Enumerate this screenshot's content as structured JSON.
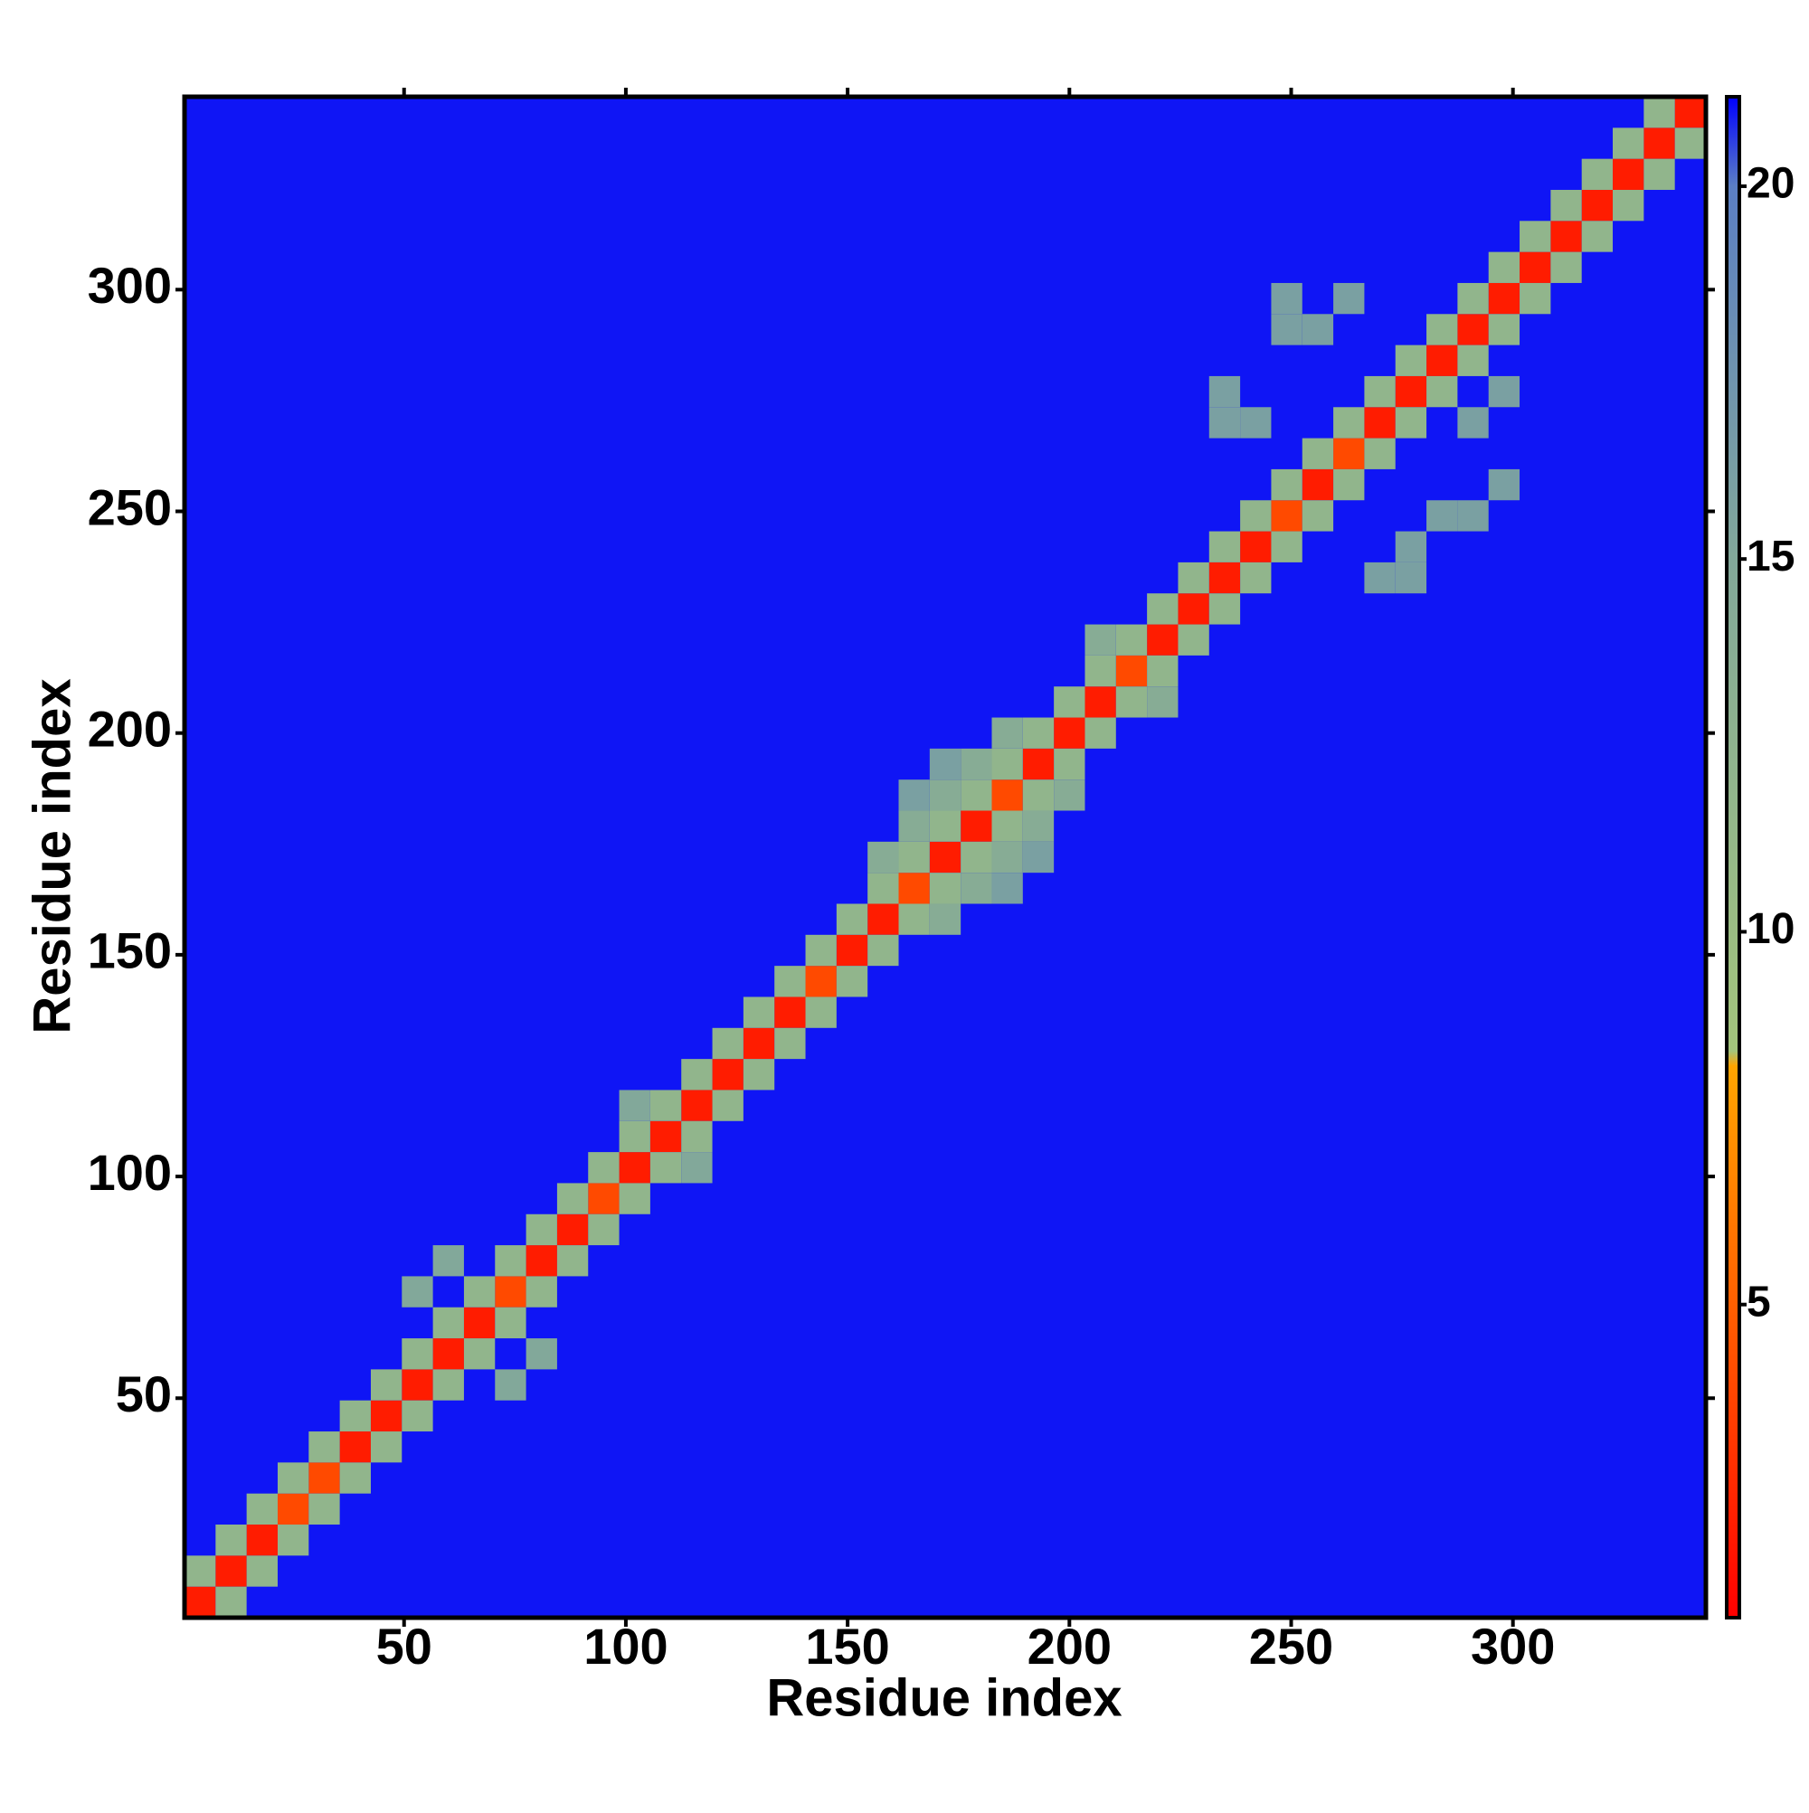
{
  "chart_data": {
    "type": "heatmap",
    "x_label": "Residue index",
    "y_label": "Residue index",
    "xlim": [
      0.5,
      343.5
    ],
    "ylim": [
      0.5,
      343.5
    ],
    "xticks": [
      50,
      100,
      150,
      200,
      250,
      300
    ],
    "yticks": [
      50,
      100,
      150,
      200,
      250,
      300
    ],
    "fill_value": 21,
    "x": [
      4,
      11,
      18,
      25,
      32,
      39,
      46,
      53,
      60,
      67,
      74,
      81,
      88,
      95,
      102,
      109,
      116,
      123,
      130,
      137,
      144,
      151,
      158,
      165,
      172,
      179,
      186,
      193,
      200,
      207,
      214,
      221,
      228,
      235,
      242,
      249,
      256,
      263,
      270,
      277,
      284,
      291,
      298,
      305,
      312,
      319,
      326,
      333,
      340,
      4,
      11,
      18,
      25,
      32,
      39,
      46,
      53,
      60,
      67,
      74,
      81,
      88,
      95,
      102,
      109,
      116,
      123,
      130,
      137,
      144,
      151,
      158,
      165,
      172,
      179,
      186,
      193,
      200,
      207,
      214,
      221,
      228,
      235,
      242,
      249,
      256,
      263,
      270,
      277,
      284,
      291,
      298,
      305,
      312,
      319,
      326,
      333,
      11,
      18,
      25,
      32,
      39,
      46,
      53,
      60,
      67,
      74,
      81,
      88,
      95,
      102,
      109,
      116,
      123,
      130,
      137,
      144,
      151,
      158,
      165,
      172,
      179,
      186,
      193,
      200,
      207,
      214,
      221,
      228,
      235,
      242,
      249,
      256,
      263,
      270,
      277,
      284,
      291,
      298,
      305,
      312,
      319,
      326,
      333,
      340,
      53,
      60,
      74,
      81,
      158,
      172,
      165,
      179,
      172,
      186,
      179,
      193,
      186,
      200,
      165,
      186,
      172,
      193,
      235,
      242,
      235,
      249,
      256,
      249,
      263,
      270,
      277,
      277,
      284,
      291,
      298,
      291,
      298,
      207,
      221,
      102,
      116
    ],
    "y": [
      4,
      11,
      18,
      25,
      32,
      39,
      46,
      53,
      60,
      67,
      74,
      81,
      88,
      95,
      102,
      109,
      116,
      123,
      130,
      137,
      144,
      151,
      158,
      165,
      172,
      179,
      186,
      193,
      200,
      207,
      214,
      221,
      228,
      235,
      242,
      249,
      256,
      263,
      270,
      277,
      284,
      291,
      298,
      305,
      312,
      319,
      326,
      333,
      340,
      11,
      18,
      25,
      32,
      39,
      46,
      53,
      60,
      67,
      74,
      81,
      88,
      95,
      102,
      109,
      116,
      123,
      130,
      137,
      144,
      151,
      158,
      165,
      172,
      179,
      186,
      193,
      200,
      207,
      214,
      221,
      228,
      235,
      242,
      249,
      256,
      263,
      270,
      277,
      284,
      291,
      298,
      305,
      312,
      319,
      326,
      333,
      340,
      4,
      11,
      18,
      25,
      32,
      39,
      46,
      53,
      60,
      67,
      74,
      81,
      88,
      95,
      102,
      109,
      116,
      123,
      130,
      137,
      144,
      151,
      158,
      165,
      172,
      179,
      186,
      193,
      200,
      207,
      214,
      221,
      228,
      235,
      242,
      249,
      256,
      263,
      270,
      277,
      284,
      291,
      298,
      305,
      312,
      319,
      326,
      333,
      74,
      81,
      53,
      60,
      172,
      158,
      179,
      165,
      186,
      172,
      193,
      179,
      200,
      186,
      186,
      165,
      193,
      172,
      270,
      270,
      277,
      291,
      291,
      298,
      298,
      235,
      235,
      242,
      249,
      249,
      256,
      270,
      277,
      221,
      207,
      116,
      102
    ],
    "values": [
      2,
      2,
      2,
      4,
      4,
      2,
      2,
      2,
      2,
      2,
      4,
      2,
      2,
      4,
      2,
      2,
      2,
      2,
      2,
      2,
      4,
      2,
      2,
      4,
      2,
      2,
      4,
      2,
      2,
      2,
      4,
      2,
      2,
      2,
      2,
      4,
      2,
      4,
      2,
      2,
      2,
      2,
      2,
      2,
      2,
      2,
      2,
      2,
      2,
      12,
      12,
      12,
      12,
      12,
      12,
      12,
      12,
      12,
      12,
      12,
      12,
      12,
      12,
      12,
      12,
      12,
      12,
      12,
      12,
      12,
      12,
      12,
      12,
      12,
      12,
      12,
      12,
      12,
      12,
      12,
      12,
      12,
      12,
      12,
      12,
      12,
      12,
      12,
      12,
      12,
      12,
      12,
      12,
      12,
      12,
      12,
      12,
      12,
      12,
      12,
      12,
      12,
      12,
      12,
      12,
      12,
      12,
      12,
      12,
      12,
      12,
      12,
      12,
      12,
      12,
      12,
      12,
      12,
      12,
      12,
      12,
      12,
      12,
      12,
      12,
      12,
      12,
      12,
      12,
      12,
      12,
      12,
      12,
      12,
      12,
      12,
      12,
      12,
      12,
      12,
      12,
      12,
      12,
      12,
      12,
      15,
      15,
      15,
      15,
      14,
      14,
      14,
      14,
      14,
      14,
      14,
      14,
      14,
      14,
      16,
      16,
      16,
      16,
      16,
      16,
      16,
      16,
      16,
      16,
      16,
      16,
      16,
      16,
      16,
      16,
      16,
      16,
      16,
      14,
      14,
      15,
      15
    ],
    "colorbar": {
      "zlim": [
        0.8,
        21.2
      ],
      "ticks": [
        5,
        10,
        15,
        20
      ],
      "stops": [
        {
          "value": 0.8,
          "color": "#ff0000"
        },
        {
          "value": 4,
          "color": "#ff4a00"
        },
        {
          "value": 8.2,
          "color": "#ffa500"
        },
        {
          "value": 8.4,
          "color": "#a3c47c"
        },
        {
          "value": 15,
          "color": "#82a89a"
        },
        {
          "value": 20,
          "color": "#5b7fc4"
        },
        {
          "value": 21.2,
          "color": "#0000ff"
        }
      ]
    }
  }
}
